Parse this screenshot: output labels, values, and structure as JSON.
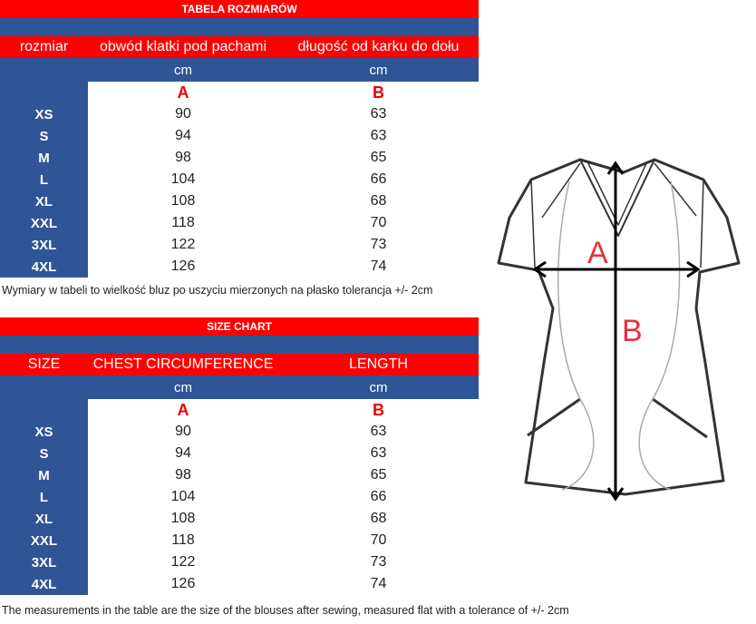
{
  "colors": {
    "header_red": "#ff0000",
    "blue": "#2f5597",
    "label_red": "#e00000"
  },
  "tables": [
    {
      "title": "TABELA ROZMIARÓW",
      "headers": [
        "rozmiar",
        "obwód klatki pod pachami",
        "długość od karku do dołu"
      ],
      "units": [
        "cm",
        "cm"
      ],
      "letters": [
        "A",
        "B"
      ],
      "rows": [
        [
          "XS",
          "90",
          "63"
        ],
        [
          "S",
          "94",
          "63"
        ],
        [
          "M",
          "98",
          "65"
        ],
        [
          "L",
          "104",
          "66"
        ],
        [
          "XL",
          "108",
          "68"
        ],
        [
          "XXL",
          "118",
          "70"
        ],
        [
          "3XL",
          "122",
          "73"
        ],
        [
          "4XL",
          "126",
          "74"
        ]
      ],
      "note": "Wymiary w tabeli to wielkość bluz po uszyciu mierzonych na płasko tolerancja +/- 2cm"
    },
    {
      "title": "SIZE CHART",
      "headers": [
        "SIZE",
        "CHEST CIRCUMFERENCE",
        "LENGTH"
      ],
      "units": [
        "cm",
        "cm"
      ],
      "letters": [
        "A",
        "B"
      ],
      "rows": [
        [
          "XS",
          "90",
          "63"
        ],
        [
          "S",
          "94",
          "63"
        ],
        [
          "M",
          "98",
          "65"
        ],
        [
          "L",
          "104",
          "66"
        ],
        [
          "XL",
          "108",
          "68"
        ],
        [
          "XXL",
          "118",
          "70"
        ],
        [
          "3XL",
          "122",
          "73"
        ],
        [
          "4XL",
          "126",
          "74"
        ]
      ],
      "note": "The measurements in the table are the size of the blouses after sewing, measured flat with a tolerance of +/- 2cm"
    }
  ],
  "diagram": {
    "label_a": "A",
    "label_b": "B"
  }
}
